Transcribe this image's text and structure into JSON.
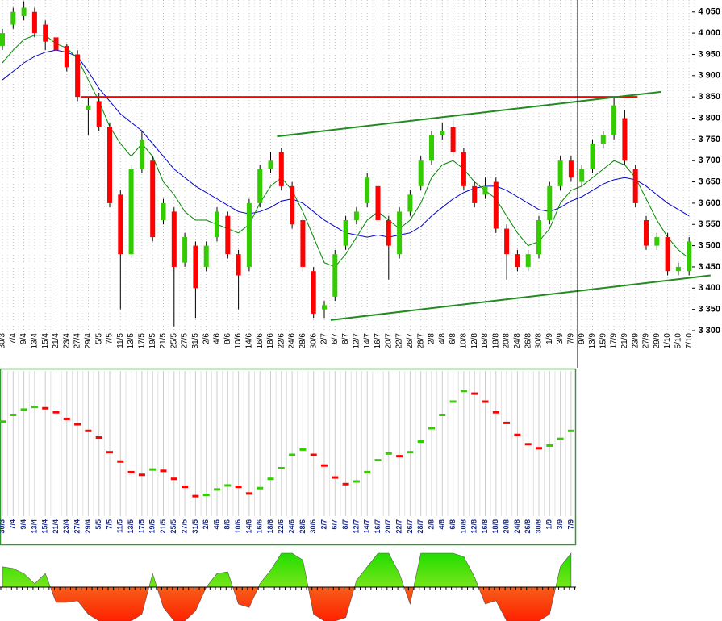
{
  "chart_data": [
    {
      "type": "candlestick",
      "categories": [
        "30/3",
        "7/4",
        "9/4",
        "13/4",
        "15/4",
        "21/4",
        "23/4",
        "27/4",
        "29/4",
        "5/5",
        "7/5",
        "11/5",
        "13/5",
        "17/5",
        "19/5",
        "21/5",
        "25/5",
        "27/5",
        "31/5",
        "2/6",
        "4/6",
        "8/6",
        "10/6",
        "14/6",
        "16/6",
        "18/6",
        "22/6",
        "24/6",
        "28/6",
        "30/6",
        "2/7",
        "6/7",
        "8/7",
        "12/7",
        "14/7",
        "16/7",
        "20/7",
        "22/7",
        "26/7",
        "28/7",
        "2/8",
        "4/8",
        "6/8",
        "10/8",
        "12/8",
        "16/8",
        "18/8",
        "20/8",
        "24/8",
        "26/8",
        "30/8",
        "1/9",
        "3/9",
        "7/9",
        "9/9",
        "13/9",
        "15/9",
        "17/9",
        "21/9",
        "23/9",
        "27/9",
        "29/9",
        "1/10",
        "5/10",
        "7/10"
      ],
      "open": [
        3970,
        4020,
        4040,
        4050,
        4020,
        3990,
        3970,
        3950,
        3820,
        3840,
        3780,
        3620,
        3480,
        3680,
        3700,
        3560,
        3580,
        3460,
        3500,
        3450,
        3520,
        3570,
        3480,
        3450,
        3600,
        3680,
        3720,
        3640,
        3560,
        3440,
        3350,
        3380,
        3500,
        3560,
        3600,
        3640,
        3560,
        3480,
        3580,
        3640,
        3700,
        3760,
        3780,
        3720,
        3640,
        3620,
        3650,
        3540,
        3480,
        3450,
        3480,
        3560,
        3640,
        3700,
        3650,
        3680,
        3740,
        3760,
        3800,
        3680,
        3560,
        3500,
        3520,
        3440,
        3440
      ],
      "high": [
        4010,
        4060,
        4075,
        4060,
        4030,
        4000,
        3975,
        3960,
        3850,
        3860,
        3790,
        3630,
        3690,
        3770,
        3710,
        3610,
        3590,
        3530,
        3510,
        3510,
        3590,
        3580,
        3490,
        3610,
        3690,
        3720,
        3730,
        3650,
        3570,
        3450,
        3370,
        3490,
        3570,
        3590,
        3670,
        3650,
        3570,
        3590,
        3630,
        3710,
        3770,
        3790,
        3800,
        3730,
        3650,
        3660,
        3660,
        3550,
        3490,
        3490,
        3570,
        3650,
        3710,
        3710,
        3690,
        3750,
        3770,
        3850,
        3820,
        3690,
        3570,
        3530,
        3530,
        3460,
        3520
      ],
      "low": [
        3960,
        4010,
        4030,
        3990,
        3960,
        3950,
        3910,
        3840,
        3760,
        3770,
        3590,
        3350,
        3470,
        3670,
        3510,
        3550,
        3310,
        3450,
        3330,
        3440,
        3510,
        3470,
        3350,
        3440,
        3590,
        3670,
        3630,
        3540,
        3440,
        3330,
        3330,
        3370,
        3490,
        3550,
        3590,
        3550,
        3420,
        3470,
        3570,
        3630,
        3690,
        3750,
        3710,
        3630,
        3590,
        3610,
        3530,
        3420,
        3440,
        3440,
        3470,
        3550,
        3630,
        3650,
        3640,
        3670,
        3730,
        3750,
        3690,
        3590,
        3490,
        3490,
        3430,
        3430,
        3430
      ],
      "close": [
        4000,
        4050,
        4060,
        4000,
        3980,
        3960,
        3920,
        3850,
        3830,
        3780,
        3600,
        3480,
        3680,
        3750,
        3520,
        3600,
        3450,
        3520,
        3400,
        3500,
        3580,
        3480,
        3430,
        3600,
        3680,
        3700,
        3640,
        3550,
        3450,
        3340,
        3360,
        3480,
        3560,
        3580,
        3660,
        3560,
        3500,
        3580,
        3620,
        3700,
        3760,
        3770,
        3720,
        3640,
        3600,
        3640,
        3540,
        3480,
        3450,
        3480,
        3560,
        3640,
        3700,
        3660,
        3680,
        3740,
        3760,
        3830,
        3700,
        3600,
        3500,
        3520,
        3440,
        3450,
        3510
      ],
      "up_color": "#33cc00",
      "down_color": "#ff0000",
      "moving_averages": [
        {
          "color": "#0000cc",
          "values": [
            3890,
            3910,
            3930,
            3945,
            3955,
            3960,
            3955,
            3945,
            3910,
            3870,
            3840,
            3810,
            3790,
            3770,
            3740,
            3710,
            3680,
            3660,
            3640,
            3625,
            3610,
            3595,
            3580,
            3575,
            3580,
            3590,
            3605,
            3610,
            3600,
            3580,
            3560,
            3545,
            3530,
            3525,
            3520,
            3525,
            3520,
            3525,
            3530,
            3545,
            3570,
            3590,
            3610,
            3625,
            3635,
            3640,
            3640,
            3630,
            3615,
            3600,
            3585,
            3580,
            3590,
            3605,
            3615,
            3630,
            3645,
            3655,
            3660,
            3655,
            3640,
            3620,
            3600,
            3585,
            3570
          ]
        },
        {
          "color": "#008800",
          "values": [
            3930,
            3960,
            3985,
            3995,
            3995,
            3975,
            3965,
            3940,
            3890,
            3840,
            3780,
            3740,
            3710,
            3740,
            3710,
            3650,
            3620,
            3580,
            3560,
            3560,
            3550,
            3540,
            3530,
            3550,
            3600,
            3640,
            3660,
            3630,
            3580,
            3520,
            3460,
            3450,
            3480,
            3520,
            3560,
            3580,
            3560,
            3540,
            3560,
            3600,
            3660,
            3690,
            3700,
            3680,
            3650,
            3630,
            3610,
            3570,
            3530,
            3500,
            3510,
            3540,
            3600,
            3630,
            3640,
            3660,
            3680,
            3700,
            3690,
            3660,
            3610,
            3560,
            3520,
            3490,
            3470
          ]
        }
      ],
      "trend_lines": [
        {
          "color": "#ff0000",
          "x": [
            7.3,
            59.2
          ],
          "y": [
            3850,
            3850
          ]
        },
        {
          "color": "#228b22",
          "x": [
            25.6,
            61.4
          ],
          "y": [
            3757,
            3862
          ]
        },
        {
          "color": "#228b22",
          "x": [
            30.6,
            66
          ],
          "y": [
            3325,
            3430
          ]
        }
      ],
      "ylim": [
        3300,
        4078
      ],
      "yticks": [
        {
          "value": 3300,
          "label": "3 300"
        },
        {
          "value": 3350,
          "label": "3 350"
        },
        {
          "value": 3400,
          "label": "3 400"
        },
        {
          "value": 3450,
          "label": "3 450"
        },
        {
          "value": 3500,
          "label": "3 500"
        },
        {
          "value": 3550,
          "label": "3 550"
        },
        {
          "value": 3600,
          "label": "3 600"
        },
        {
          "value": 3650,
          "label": "3 650"
        },
        {
          "value": 3700,
          "label": "3 700"
        },
        {
          "value": 3750,
          "label": "3 750"
        },
        {
          "value": 3800,
          "label": "3 800"
        },
        {
          "value": 3850,
          "label": "3 850"
        },
        {
          "value": 3900,
          "label": "3 900"
        },
        {
          "value": 3950,
          "label": "3 950"
        },
        {
          "value": 4000,
          "label": "4 000"
        },
        {
          "value": 4050,
          "label": "4 050"
        }
      ]
    },
    {
      "type": "step",
      "categories": [
        "30/3",
        "7/4",
        "9/4",
        "13/4",
        "15/4",
        "21/4",
        "23/4",
        "27/4",
        "29/4",
        "5/5",
        "7/5",
        "11/5",
        "13/5",
        "17/5",
        "19/5",
        "21/5",
        "25/5",
        "27/5",
        "31/5",
        "2/6",
        "4/6",
        "8/6",
        "10/6",
        "14/6",
        "16/6",
        "18/6",
        "22/6",
        "24/6",
        "28/6",
        "30/6",
        "2/7",
        "6/7",
        "8/7",
        "12/7",
        "14/7",
        "16/7",
        "20/7",
        "22/7",
        "26/7",
        "28/7",
        "2/8",
        "4/8",
        "6/8",
        "10/8",
        "12/8",
        "16/8",
        "18/8",
        "20/8",
        "24/8",
        "26/8",
        "30/8",
        "1/9",
        "3/9",
        "7/9"
      ],
      "values": [
        65,
        70,
        74,
        76,
        75,
        72,
        67,
        63,
        58,
        53,
        42,
        35,
        27,
        25,
        29,
        28,
        22,
        16,
        9,
        10,
        14,
        17,
        16,
        11,
        15,
        22,
        30,
        40,
        44,
        40,
        32,
        23,
        18,
        20,
        27,
        36,
        41,
        39,
        42,
        50,
        60,
        70,
        80,
        88,
        86,
        80,
        72,
        64,
        55,
        48,
        45,
        47,
        52,
        58
      ],
      "up_color": "#33cc00",
      "down_color": "#ff0000",
      "ylim": [
        0,
        100
      ]
    },
    {
      "type": "area",
      "values": [
        60,
        55,
        40,
        10,
        40,
        -45,
        -45,
        -40,
        -80,
        -100,
        -100,
        -100,
        -100,
        -80,
        40,
        -60,
        -100,
        -100,
        -70,
        0,
        40,
        45,
        -50,
        -60,
        10,
        50,
        100,
        100,
        80,
        -80,
        -100,
        -100,
        -90,
        20,
        60,
        100,
        100,
        40,
        -50,
        100,
        100,
        100,
        100,
        90,
        30,
        -50,
        -40,
        -100,
        -100,
        -100,
        -100,
        -80,
        60,
        100
      ],
      "ylim": [
        -100,
        100
      ]
    }
  ]
}
